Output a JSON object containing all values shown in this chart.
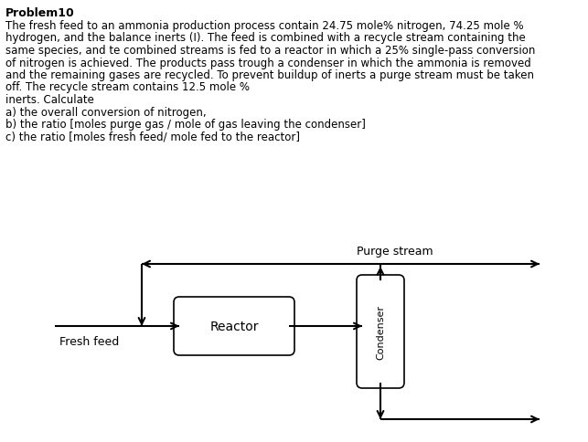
{
  "title": "Problem10",
  "line1": "The fresh feed to an ammonia production process contain 24.75 mole% nitrogen, 74.25 mole %",
  "line2": "hydrogen, and the balance inerts (I). The feed is combined with a recycle stream containing the",
  "line3": "same species, and te combined streams is fed to a reactor in which a 25% single-pass conversion",
  "line4": "of nitrogen is achieved. The products pass trough a condenser in which the ammonia is removed",
  "line5": "and the remaining gases are recycled. To prevent buildup of inerts a purge stream must be taken",
  "line6": "off. The recycle stream contains 12.5 mole %",
  "line7": "inerts. Calculate",
  "line8": "a) the overall conversion of nitrogen,",
  "line9": "b) the ratio [moles purge gas / mole of gas leaving the condenser]",
  "line10": "c) the ratio [moles fresh feed/ mole fed to the reactor]",
  "bg_color": "#ffffff",
  "text_color": "#000000",
  "reactor_label": "Reactor",
  "condenser_label": "Condenser",
  "fresh_feed_label": "Fresh feed",
  "purge_label": "Purge stream",
  "title_fontsize": 9,
  "body_fontsize": 8.5,
  "diagram_fontsize": 9
}
